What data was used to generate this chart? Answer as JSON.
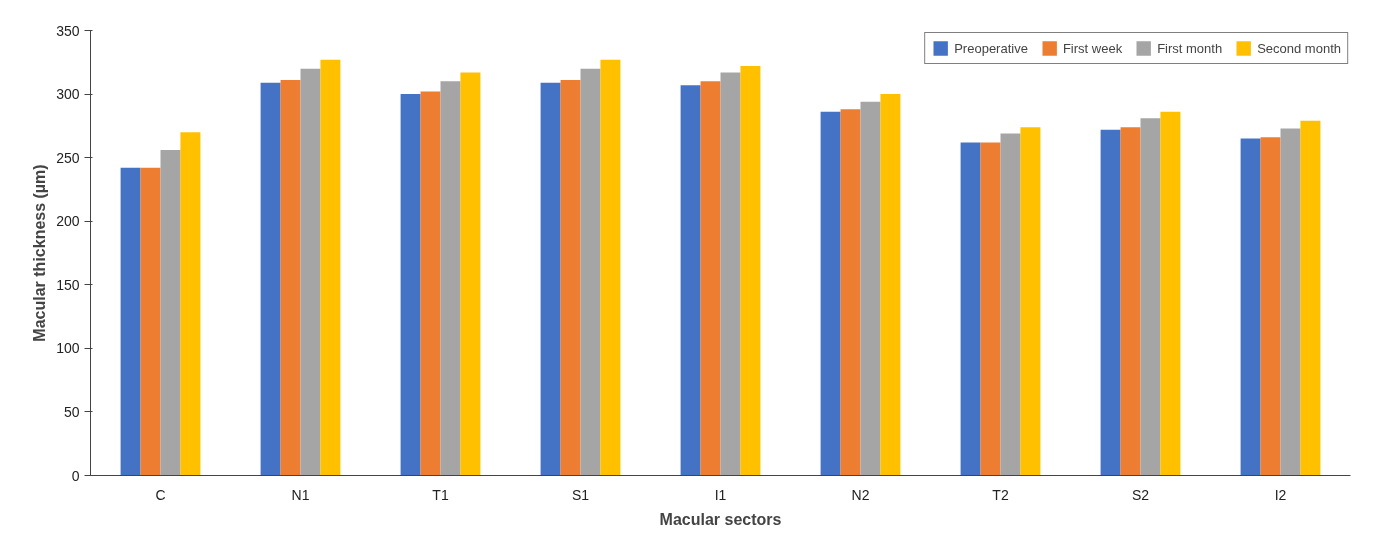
{
  "chart_data": {
    "type": "bar",
    "xlabel": "Macular sectors",
    "ylabel": "Macular thickness (µm)",
    "categories": [
      "C",
      "N1",
      "T1",
      "S1",
      "I1",
      "N2",
      "T2",
      "S2",
      "I2"
    ],
    "series": [
      {
        "name": "Preoperative",
        "color": "#4472c4",
        "values": [
          242,
          309,
          300,
          309,
          307,
          286,
          262,
          272,
          265
        ]
      },
      {
        "name": "First week",
        "color": "#ed7d31",
        "values": [
          242,
          311,
          302,
          311,
          310,
          288,
          262,
          274,
          266
        ]
      },
      {
        "name": "First month",
        "color": "#a5a5a5",
        "values": [
          256,
          320,
          310,
          320,
          317,
          294,
          269,
          281,
          273
        ]
      },
      {
        "name": "Second month",
        "color": "#ffc000",
        "values": [
          270,
          327,
          317,
          327,
          322,
          300,
          274,
          286,
          279
        ]
      }
    ],
    "ylim": [
      0,
      350
    ],
    "yticks": [
      0,
      50,
      100,
      150,
      200,
      250,
      300,
      350
    ],
    "grid": false,
    "legend": "top right"
  }
}
